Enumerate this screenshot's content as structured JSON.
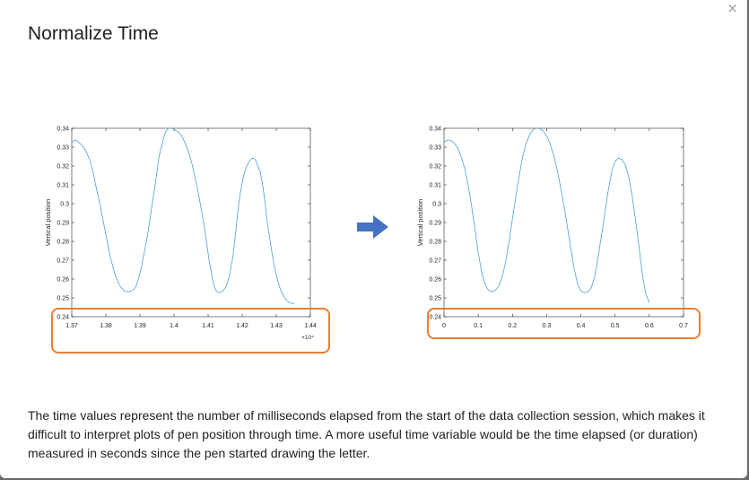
{
  "dialog": {
    "title": "Normalize Time",
    "close_glyph": "×",
    "description": "The time values represent the number of milliseconds elapsed from the start of the data collection session, which makes it difficult to interpret plots of pen position through time. A more useful time variable would be the time elapsed (or duration) measured in seconds since the pen started drawing the letter.",
    "arrow_icon": "right-arrow-icon",
    "highlight_color": "#ED7D31",
    "arrow_color": "#4472C4",
    "line_color": "#4E9FD6"
  },
  "chart_data": [
    {
      "type": "line",
      "ylabel": "Vertical position",
      "xlim": [
        1.37,
        1.44
      ],
      "ylim": [
        0.24,
        0.34
      ],
      "xticks": [
        "1.37",
        "1.38",
        "1.39",
        "1.4",
        "1.41",
        "1.42",
        "1.43",
        "1.44"
      ],
      "yticks": [
        "0.24",
        "0.25",
        "0.26",
        "0.27",
        "0.28",
        "0.29",
        "0.3",
        "0.31",
        "0.32",
        "0.33",
        "0.34"
      ],
      "x_multiplier_label": "×10⁴",
      "x": [
        1.3703,
        1.3706,
        1.3709,
        1.3714,
        1.3723,
        1.3733,
        1.3743,
        1.3752,
        1.3758,
        1.3764,
        1.3768,
        1.3773,
        1.3784,
        1.3798,
        1.3813,
        1.3828,
        1.3843,
        1.3856,
        1.3868,
        1.3879,
        1.3887,
        1.3893,
        1.3899,
        1.3905,
        1.3913,
        1.3923,
        1.3933,
        1.3943,
        1.395,
        1.3956,
        1.3963,
        1.3969,
        1.3975,
        1.3983,
        1.3992,
        1.3998,
        1.4003,
        1.4008,
        1.4014,
        1.4023,
        1.4033,
        1.4043,
        1.4053,
        1.4063,
        1.4073,
        1.4083,
        1.4093,
        1.4103,
        1.4113,
        1.4118,
        1.4123,
        1.4128,
        1.4134,
        1.4143,
        1.4153,
        1.4163,
        1.4173,
        1.418,
        1.4186,
        1.4193,
        1.4203,
        1.4213,
        1.4223,
        1.423,
        1.4236,
        1.4241,
        1.4246,
        1.4253,
        1.426,
        1.4267,
        1.4273,
        1.4283,
        1.4293,
        1.4303,
        1.4313,
        1.4323,
        1.4333,
        1.4343,
        1.4353
      ],
      "y": [
        0.3325,
        0.3335,
        0.3338,
        0.3335,
        0.3321,
        0.3303,
        0.3275,
        0.3237,
        0.3199,
        0.3158,
        0.3118,
        0.3076,
        0.2986,
        0.2855,
        0.2716,
        0.2616,
        0.2558,
        0.2534,
        0.2532,
        0.254,
        0.2556,
        0.2584,
        0.2623,
        0.267,
        0.274,
        0.284,
        0.296,
        0.308,
        0.317,
        0.325,
        0.33,
        0.3345,
        0.338,
        0.34,
        0.3402,
        0.3397,
        0.339,
        0.3385,
        0.3378,
        0.3358,
        0.332,
        0.3272,
        0.321,
        0.313,
        0.304,
        0.294,
        0.283,
        0.27,
        0.26,
        0.2562,
        0.254,
        0.253,
        0.2528,
        0.2535,
        0.256,
        0.262,
        0.272,
        0.283,
        0.294,
        0.304,
        0.314,
        0.32,
        0.323,
        0.3242,
        0.3238,
        0.3225,
        0.32,
        0.317,
        0.31,
        0.301,
        0.291,
        0.279,
        0.268,
        0.26,
        0.254,
        0.2504,
        0.2483,
        0.2472,
        0.247
      ]
    },
    {
      "type": "line",
      "ylabel": "Vertical position",
      "xlim": [
        0,
        0.7
      ],
      "ylim": [
        0.24,
        0.34
      ],
      "xticks": [
        "0",
        "0.1",
        "0.2",
        "0.3",
        "0.4",
        "0.5",
        "0.6",
        "0.7"
      ],
      "yticks": [
        "0.24",
        "0.25",
        "0.26",
        "0.27",
        "0.28",
        "0.29",
        "0.3",
        "0.31",
        "0.32",
        "0.33",
        "0.34"
      ],
      "x": [
        0.0,
        0.01,
        0.02,
        0.03,
        0.04,
        0.05,
        0.06,
        0.07,
        0.08,
        0.09,
        0.1,
        0.11,
        0.12,
        0.13,
        0.14,
        0.15,
        0.16,
        0.17,
        0.18,
        0.19,
        0.2,
        0.21,
        0.22,
        0.23,
        0.24,
        0.25,
        0.26,
        0.27,
        0.28,
        0.29,
        0.3,
        0.31,
        0.32,
        0.33,
        0.34,
        0.35,
        0.36,
        0.37,
        0.38,
        0.39,
        0.4,
        0.41,
        0.42,
        0.43,
        0.44,
        0.45,
        0.46,
        0.47,
        0.48,
        0.49,
        0.5,
        0.51,
        0.52,
        0.53,
        0.54,
        0.55,
        0.56,
        0.57,
        0.58,
        0.59,
        0.6
      ],
      "y": [
        0.3325,
        0.3338,
        0.3336,
        0.3321,
        0.3295,
        0.325,
        0.319,
        0.3105,
        0.2995,
        0.287,
        0.274,
        0.2636,
        0.2572,
        0.254,
        0.2532,
        0.254,
        0.2562,
        0.261,
        0.269,
        0.28,
        0.292,
        0.304,
        0.315,
        0.325,
        0.332,
        0.3365,
        0.3392,
        0.3402,
        0.3398,
        0.3386,
        0.336,
        0.3318,
        0.326,
        0.3185,
        0.3095,
        0.2995,
        0.2885,
        0.277,
        0.266,
        0.2575,
        0.2537,
        0.2528,
        0.2532,
        0.2552,
        0.261,
        0.271,
        0.283,
        0.295,
        0.307,
        0.317,
        0.3225,
        0.3242,
        0.3235,
        0.3205,
        0.314,
        0.304,
        0.291,
        0.277,
        0.262,
        0.252,
        0.2475
      ]
    }
  ]
}
